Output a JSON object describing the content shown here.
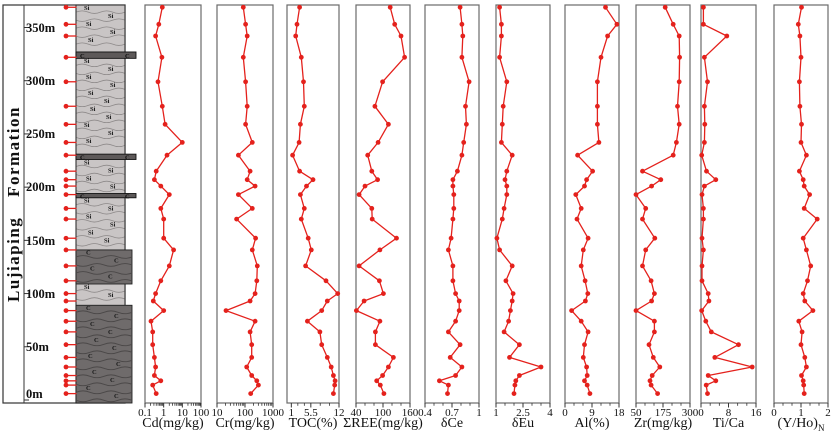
{
  "figure": {
    "formation_label": "Lujiaping  Formation",
    "depth_axis": {
      "labels": [
        "350m",
        "300m",
        "250m",
        "200m",
        "150m",
        "100m",
        "50m",
        "0m"
      ],
      "values_m": [
        350,
        300,
        250,
        200,
        150,
        100,
        50,
        0
      ]
    },
    "lithology": {
      "si_label": "Si",
      "c_label": "C",
      "sections": [
        {
          "lith": "Si",
          "top_m": 371,
          "base_m": 327
        },
        {
          "lith": "C-band",
          "top_m": 327,
          "base_m": 321
        },
        {
          "lith": "Si",
          "top_m": 321,
          "base_m": 231
        },
        {
          "lith": "C-band",
          "top_m": 231,
          "base_m": 226
        },
        {
          "lith": "Si",
          "top_m": 226,
          "base_m": 194
        },
        {
          "lith": "C-band",
          "top_m": 194,
          "base_m": 190
        },
        {
          "lith": "Si",
          "top_m": 190,
          "base_m": 141
        },
        {
          "lith": "C",
          "top_m": 141,
          "base_m": 109
        },
        {
          "lith": "Si",
          "top_m": 109,
          "base_m": 89
        },
        {
          "lith": "C",
          "top_m": 89,
          "base_m": 0
        }
      ]
    },
    "samples_height_m": [
      369,
      353,
      342,
      322,
      299,
      276,
      259,
      242,
      230,
      215,
      207,
      201,
      193,
      180,
      170,
      152,
      141,
      126,
      112,
      100,
      93,
      84,
      74,
      64,
      52,
      40,
      31,
      23,
      18,
      14,
      6
    ],
    "colors": {
      "series": "#e4211c",
      "si_fill": "#c9c5c5",
      "si_line": "#8e8a8a",
      "c_fill": "#6f6b6b",
      "c_line": "#4b4848",
      "band_fill": "#5d5959",
      "frame": "#333333",
      "plot_frame": "#6a6a6a",
      "text": "#111111"
    }
  },
  "chart_data": [
    {
      "type": "line",
      "title": "Cd(mg/kg)",
      "scale": "log",
      "xlim": [
        0.1,
        100
      ],
      "xticks": [
        0.1,
        1,
        10,
        100
      ],
      "values": [
        0.85,
        0.55,
        0.37,
        0.8,
        0.5,
        0.85,
        1.2,
        10,
        1.5,
        0.4,
        0.32,
        0.7,
        2,
        0.7,
        1,
        1,
        3.4,
        2,
        0.7,
        0.37,
        0.28,
        1,
        0.21,
        0.26,
        0.26,
        0.32,
        0.37,
        0.32,
        0.7,
        0.26,
        0.4
      ]
    },
    {
      "type": "line",
      "title": "Cr(mg/kg)",
      "scale": "log",
      "xlim": [
        10,
        1000
      ],
      "xticks": [
        10,
        100,
        1000
      ],
      "values": [
        87,
        105,
        120,
        87,
        105,
        120,
        105,
        182,
        58,
        152,
        120,
        229,
        58,
        182,
        50,
        240,
        182,
        275,
        263,
        229,
        152,
        21,
        229,
        152,
        173,
        173,
        115,
        173,
        263,
        300,
        160
      ]
    },
    {
      "type": "line",
      "title": "TOC(%)",
      "scale": "linear",
      "xlim": [
        0,
        12
      ],
      "xticks": [
        1,
        5.5,
        12
      ],
      "values": [
        2.9,
        2.3,
        2,
        3.3,
        3.8,
        4,
        3.1,
        2.8,
        1.3,
        2.9,
        6,
        4.5,
        3.1,
        4,
        3.3,
        4.9,
        5.6,
        4.3,
        9,
        11.7,
        9.3,
        8,
        4.7,
        7.6,
        8,
        9.3,
        10.2,
        10.7,
        11.1,
        11,
        10.7
      ]
    },
    {
      "type": "line",
      "title": "ΣREE(mg/kg)",
      "scale": "linear",
      "xlim": [
        40,
        160
      ],
      "xticks": [
        40,
        100,
        160
      ],
      "values": [
        116,
        126,
        140,
        148,
        99,
        82,
        112,
        89,
        66,
        75,
        88,
        60,
        47,
        75,
        76,
        130,
        93,
        47,
        92,
        101,
        58,
        41,
        93,
        83,
        83,
        123,
        112,
        99,
        86,
        94,
        102
      ]
    },
    {
      "type": "line",
      "title": "δCe",
      "scale": "linear",
      "xlim": [
        0.4,
        1
      ],
      "xticks": [
        0.4,
        0.7,
        1
      ],
      "values": [
        0.79,
        0.81,
        0.82,
        0.81,
        0.89,
        0.85,
        0.86,
        0.83,
        0.81,
        0.76,
        0.71,
        0.71,
        0.72,
        0.72,
        0.71,
        0.69,
        0.66,
        0.71,
        0.71,
        0.74,
        0.78,
        0.78,
        0.74,
        0.66,
        0.79,
        0.68,
        0.81,
        0.74,
        0.56,
        0.66,
        0.65
      ]
    },
    {
      "type": "line",
      "title": "δEu",
      "scale": "linear",
      "xlim": [
        1,
        4
      ],
      "xticks": [
        1,
        2.5,
        4
      ],
      "values": [
        1.2,
        1.3,
        1.3,
        1.2,
        1.6,
        1.4,
        1.35,
        1.3,
        1.9,
        1.6,
        1.5,
        1.6,
        1.6,
        1.45,
        1.35,
        1.05,
        1.2,
        1.9,
        1.55,
        1.95,
        1.9,
        1.8,
        1.7,
        1.45,
        2.3,
        1.75,
        3.5,
        2.3,
        2.1,
        2.05,
        2
      ]
    },
    {
      "type": "line",
      "title": "Al(%)",
      "scale": "linear",
      "xlim": [
        0,
        18
      ],
      "xticks": [
        0,
        9,
        18
      ],
      "values": [
        13.5,
        17.3,
        14.2,
        12,
        10.8,
        10.8,
        10.8,
        11.3,
        4.2,
        9.2,
        7.2,
        6.5,
        3.6,
        5.4,
        4,
        7.7,
        6.1,
        5.4,
        6.7,
        7.6,
        6.8,
        2.2,
        5.4,
        7.7,
        6.5,
        6.1,
        7.2,
        7.4,
        6.5,
        7.4,
        8.3
      ]
    },
    {
      "type": "line",
      "title": "Zr(mg/kg)",
      "scale": "linear",
      "xlim": [
        50,
        300
      ],
      "xticks": [
        50,
        175,
        300
      ],
      "values": [
        185,
        222,
        250,
        252,
        250,
        242,
        250,
        237,
        222,
        80,
        165,
        122,
        50,
        95,
        80,
        137,
        95,
        80,
        120,
        135,
        122,
        50,
        135,
        135,
        110,
        130,
        160,
        125,
        115,
        120,
        150
      ]
    },
    {
      "type": "line",
      "title": "Ti/Ca",
      "scale": "linear",
      "xlim": [
        0,
        16
      ],
      "xticks": [
        0,
        8,
        16
      ],
      "values": [
        0.7,
        0.7,
        7.5,
        1,
        1.9,
        1,
        1.1,
        1,
        0.2,
        1.6,
        4.3,
        1,
        0.3,
        0.7,
        0.7,
        0.3,
        0.7,
        0.3,
        0.3,
        2.1,
        2.3,
        0.2,
        1.4,
        3,
        10.9,
        4,
        14.9,
        2.1,
        4.3,
        1.5,
        1.9
      ]
    },
    {
      "type": "line",
      "title": "(Y/Ho)",
      "title_sub": "N",
      "scale": "linear",
      "xlim": [
        0,
        2
      ],
      "xticks": [
        0,
        1,
        2
      ],
      "values": [
        1.02,
        0.9,
        0.96,
        1,
        0.94,
        0.96,
        1.02,
        1,
        1.2,
        0.94,
        1.08,
        1.12,
        1.32,
        1.12,
        1.6,
        1.08,
        1.2,
        1.36,
        1.24,
        1.08,
        1.14,
        1.44,
        0.92,
        1.04,
        1,
        1.14,
        1.2,
        1.02,
        1.08,
        1.1,
        1.12
      ]
    }
  ]
}
